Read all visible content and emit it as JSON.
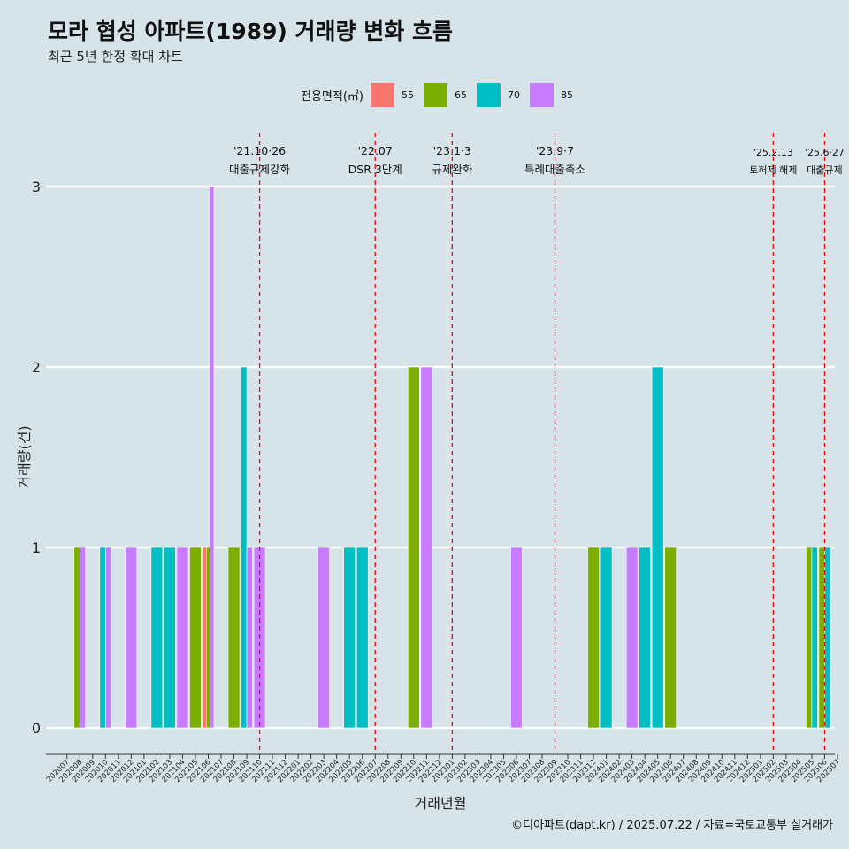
{
  "header": {
    "title": "모라 협성 아파트(1989) 거래량 변화 흐름",
    "subtitle": "최근 5년 한정 확대 차트"
  },
  "legend": {
    "title": "전용면적(㎡)",
    "items": [
      {
        "label": "55",
        "color": "#f8766d"
      },
      {
        "label": "65",
        "color": "#7cae00"
      },
      {
        "label": "70",
        "color": "#00bfc4"
      },
      {
        "label": "85",
        "color": "#c77cff"
      }
    ]
  },
  "footer": "©디아파트(dapt.kr) / 2025.07.22 / 자료=국토교통부 실거래가",
  "chart_data": {
    "type": "bar",
    "xlabel": "거래년월",
    "ylabel": "거래량(건)",
    "ylim": [
      0,
      3
    ],
    "yticks": [
      0,
      1,
      2,
      3
    ],
    "grid": true,
    "legend_position": "top",
    "categories": [
      "202007",
      "202008",
      "202009",
      "202010",
      "202011",
      "202012",
      "202101",
      "202102",
      "202103",
      "202104",
      "202105",
      "202106",
      "202107",
      "202108",
      "202109",
      "202110",
      "202111",
      "202112",
      "202201",
      "202202",
      "202203",
      "202204",
      "202205",
      "202206",
      "202207",
      "202208",
      "202209",
      "202210",
      "202211",
      "202212",
      "202301",
      "202302",
      "202303",
      "202304",
      "202305",
      "202306",
      "202307",
      "202308",
      "202309",
      "202310",
      "202311",
      "202312",
      "202401",
      "202402",
      "202403",
      "202404",
      "202405",
      "202406",
      "202407",
      "202408",
      "202409",
      "202410",
      "202411",
      "202412",
      "202501",
      "202502",
      "202503",
      "202504",
      "202505",
      "202506",
      "202507"
    ],
    "series": [
      {
        "name": "55",
        "color": "#f8766d",
        "points": [
          {
            "x": "202106",
            "y": 1
          }
        ]
      },
      {
        "name": "65",
        "color": "#7cae00",
        "points": [
          {
            "x": "202008",
            "y": 1
          },
          {
            "x": "202105",
            "y": 1
          },
          {
            "x": "202106",
            "y": 1
          },
          {
            "x": "202108",
            "y": 1
          },
          {
            "x": "202210",
            "y": 2
          },
          {
            "x": "202312",
            "y": 1
          },
          {
            "x": "202406",
            "y": 1
          },
          {
            "x": "202505",
            "y": 1
          },
          {
            "x": "202506",
            "y": 1
          }
        ]
      },
      {
        "name": "70",
        "color": "#00bfc4",
        "points": [
          {
            "x": "202010",
            "y": 1
          },
          {
            "x": "202102",
            "y": 1
          },
          {
            "x": "202103",
            "y": 1
          },
          {
            "x": "202109",
            "y": 2
          },
          {
            "x": "202205",
            "y": 1
          },
          {
            "x": "202206",
            "y": 1
          },
          {
            "x": "202401",
            "y": 1
          },
          {
            "x": "202404",
            "y": 1
          },
          {
            "x": "202405",
            "y": 2
          },
          {
            "x": "202505",
            "y": 1
          },
          {
            "x": "202506",
            "y": 1
          }
        ]
      },
      {
        "name": "85",
        "color": "#c77cff",
        "points": [
          {
            "x": "202008",
            "y": 1
          },
          {
            "x": "202010",
            "y": 1
          },
          {
            "x": "202012",
            "y": 1
          },
          {
            "x": "202104",
            "y": 1
          },
          {
            "x": "202106",
            "y": 3
          },
          {
            "x": "202109",
            "y": 1
          },
          {
            "x": "202110",
            "y": 1
          },
          {
            "x": "202203",
            "y": 1
          },
          {
            "x": "202211",
            "y": 2
          },
          {
            "x": "202306",
            "y": 1
          },
          {
            "x": "202403",
            "y": 1
          }
        ]
      }
    ],
    "annotations": [
      {
        "x": "202110",
        "line1": "'21.10·26",
        "line2": "대출규제강화"
      },
      {
        "x": "202207",
        "line1": "'22.07",
        "line2": "DSR 3단계"
      },
      {
        "x": "202301",
        "line1": "'23.1·3",
        "line2": "규제완화"
      },
      {
        "x": "202309",
        "line1": "'23.9·7",
        "line2": "특례대출축소"
      },
      {
        "x": "202502",
        "line1": "'25.2.13",
        "line2": "토허제 해제"
      },
      {
        "x": "202506",
        "line1": "'25.6·27",
        "line2": "대출규제"
      }
    ]
  }
}
